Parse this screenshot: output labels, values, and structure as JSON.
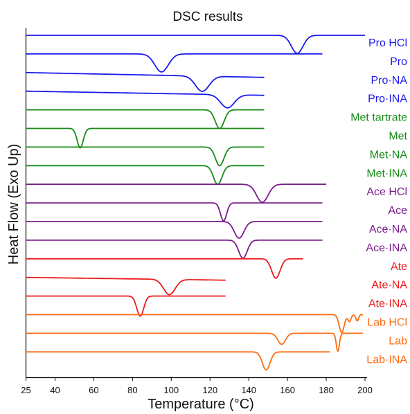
{
  "chart_data": {
    "type": "line",
    "title": "DSC results",
    "xlabel": "Temperature (°C)",
    "ylabel": "Heat Flow (Exo Up)",
    "xlim": [
      25,
      200
    ],
    "xticks": [
      25,
      40,
      60,
      80,
      100,
      120,
      140,
      160,
      180,
      200
    ],
    "grid": false,
    "legend": "labels at right end of each curve",
    "colors": {
      "Pro": "#1a1aee",
      "Met": "#138a13",
      "Ace": "#7a1a8c",
      "Ate": "#ee1a1a",
      "Lab": "#ff6a10",
      "axis": "#000000"
    },
    "series": [
      {
        "name": "Pro HCl",
        "group": "Pro",
        "x_end": 200,
        "peaks": [
          {
            "x": 165,
            "depth": 26,
            "width": 3
          }
        ]
      },
      {
        "name": "Pro",
        "group": "Pro",
        "x_end": 178,
        "peaks": [
          {
            "x": 95,
            "depth": 26,
            "width": 3.5
          }
        ]
      },
      {
        "name": "Pro·NA",
        "group": "Pro",
        "x_end": 148,
        "drift": 7,
        "peaks": [
          {
            "x": 116,
            "depth": 22,
            "width": 3.5
          }
        ]
      },
      {
        "name": "Pro·INA",
        "group": "Pro",
        "x_end": 148,
        "drift": 6,
        "peaks": [
          {
            "x": 129,
            "depth": 19,
            "width": 3.5
          }
        ]
      },
      {
        "name": "Met tartrate",
        "group": "Met",
        "x_end": 148,
        "peaks": [
          {
            "x": 125,
            "depth": 27,
            "width": 2.3
          }
        ]
      },
      {
        "name": "Met",
        "group": "Met",
        "x_end": 148,
        "peaks": [
          {
            "x": 53,
            "depth": 28,
            "width": 1.6
          }
        ]
      },
      {
        "name": "Met·NA",
        "group": "Met",
        "x_end": 148,
        "peaks": [
          {
            "x": 125,
            "depth": 27,
            "width": 2.2
          }
        ]
      },
      {
        "name": "Met·INA",
        "group": "Met",
        "x_end": 148,
        "peaks": [
          {
            "x": 124,
            "depth": 27,
            "width": 2.2
          }
        ]
      },
      {
        "name": "Ace HCl",
        "group": "Ace",
        "x_end": 180,
        "peaks": [
          {
            "x": 147,
            "depth": 26,
            "width": 3
          }
        ]
      },
      {
        "name": "Ace",
        "group": "Ace",
        "x_end": 178,
        "peaks": [
          {
            "x": 127,
            "depth": 26,
            "width": 1.6
          }
        ]
      },
      {
        "name": "Ace·NA",
        "group": "Ace",
        "x_end": 178,
        "peaks": [
          {
            "x": 135,
            "depth": 24,
            "width": 2.5
          }
        ]
      },
      {
        "name": "Ace·INA",
        "group": "Ace",
        "x_end": 178,
        "peaks": [
          {
            "x": 137,
            "depth": 26,
            "width": 2.2
          }
        ]
      },
      {
        "name": "Ate",
        "group": "Ate",
        "x_end": 168,
        "peaks": [
          {
            "x": 154,
            "depth": 28,
            "width": 2.2
          }
        ]
      },
      {
        "name": "Ate·NA",
        "group": "Ate",
        "x_end": 128,
        "drift": 4,
        "peaks": [
          {
            "x": 99,
            "depth": 22,
            "width": 3
          }
        ]
      },
      {
        "name": "Ate·INA",
        "group": "Ate",
        "x_end": 128,
        "peaks": [
          {
            "x": 84,
            "depth": 29,
            "width": 1.8
          }
        ]
      },
      {
        "name": "Lab HCl",
        "group": "Lab",
        "x_end": 199,
        "peaks": [
          {
            "x": 188,
            "depth": 26,
            "width": 1.3
          },
          {
            "x": 192,
            "depth": 10,
            "width": 0.8
          },
          {
            "x": 196,
            "depth": 9,
            "width": 0.7
          }
        ]
      },
      {
        "name": "Lab",
        "group": "Lab",
        "x_end": 199,
        "peaks": [
          {
            "x": 157,
            "depth": 16,
            "width": 2
          },
          {
            "x": 186,
            "depth": 26,
            "width": 0.8
          }
        ]
      },
      {
        "name": "Lab·INA",
        "group": "Lab",
        "x_end": 182,
        "peaks": [
          {
            "x": 149,
            "depth": 26,
            "width": 2
          }
        ]
      }
    ]
  }
}
